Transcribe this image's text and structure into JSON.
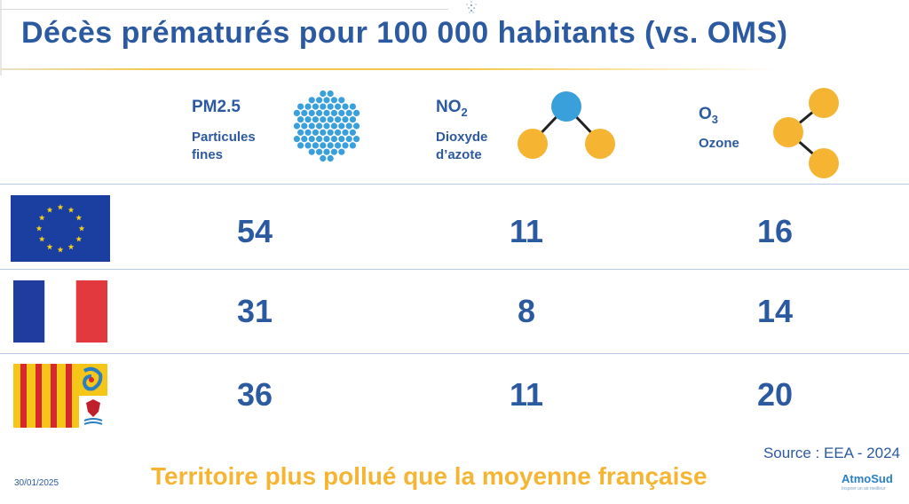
{
  "title": "Décès prématurés pour 100 000 habitants (vs. OMS)",
  "pollutants": [
    {
      "code_main": "PM",
      "code_sub": "2.5",
      "name_line1": "Particules",
      "name_line2": "fines",
      "icon": "particles-icon"
    },
    {
      "code_main": "NO",
      "code_sub": "2",
      "name_line1": "Dioxyde",
      "name_line2": "d’azote",
      "icon": "no2-molecule-icon"
    },
    {
      "code_main": "O",
      "code_sub": "3",
      "name_line1": "Ozone",
      "name_line2": "",
      "icon": "o3-molecule-icon"
    }
  ],
  "rows": [
    {
      "flag": "eu-flag-icon",
      "values": [
        "54",
        "11",
        "16"
      ]
    },
    {
      "flag": "france-flag-icon",
      "values": [
        "31",
        "8",
        "14"
      ]
    },
    {
      "flag": "region-sud-flag-icon",
      "values": [
        "36",
        "11",
        "20"
      ]
    }
  ],
  "source": "Source : EEA - 2024",
  "date": "30/01/2025",
  "message": "Territoire plus pollué que la moyenne française",
  "logo": {
    "name_a": "Atmo",
    "name_b": "Sud",
    "tagline": "Inspirer un air meilleur"
  },
  "colors": {
    "primary": "#2c5aa0",
    "accent": "#f5b533",
    "molecule_blue": "#3aa0dc",
    "molecule_orange": "#f5b533"
  }
}
